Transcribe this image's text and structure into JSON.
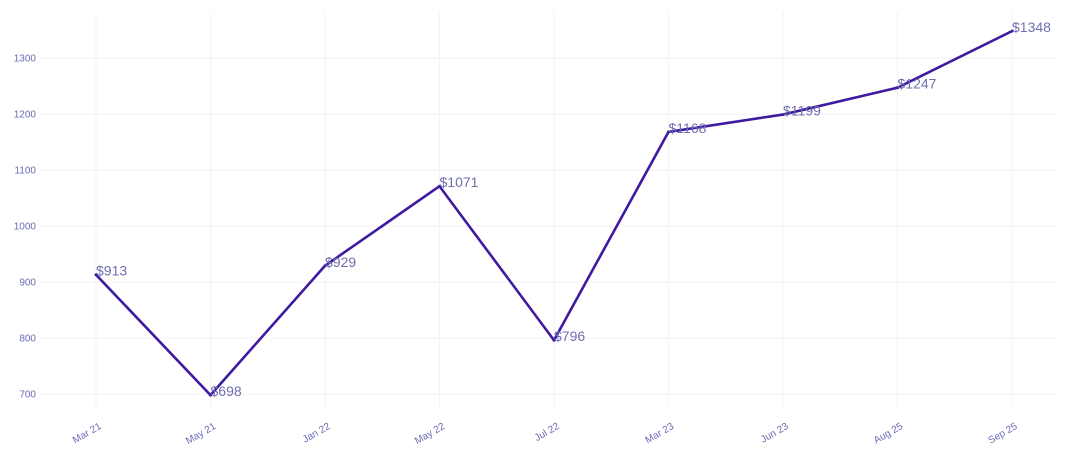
{
  "colors": {
    "line": "#3f1aa0",
    "tick_text": "#6b6bb8",
    "data_label": "#6f6fb0",
    "grid": "#f3f3f7"
  },
  "chart_data": {
    "type": "line",
    "title": "",
    "xlabel": "",
    "ylabel": "",
    "categories": [
      "Mar 21",
      "May 21",
      "Jan 22",
      "May 22",
      "Jul 22",
      "Mar 23",
      "Jun 23",
      "Aug 25",
      "Sep 25"
    ],
    "series": [
      {
        "values": [
          913,
          698,
          929,
          1071,
          796,
          1168,
          1199,
          1247,
          1348
        ],
        "labels": [
          "$913",
          "$698",
          "$929",
          "$1071",
          "$796",
          "$1168",
          "$1199",
          "$1247",
          "$1348"
        ]
      }
    ],
    "ylim": [
      675,
      1390
    ],
    "yticks": [
      700,
      800,
      900,
      1000,
      1100,
      1200,
      1300
    ],
    "ytick_labels": [
      "700",
      "800",
      "900",
      "1000",
      "1100",
      "1200",
      "1300"
    ],
    "grid": true,
    "legend": "none"
  }
}
